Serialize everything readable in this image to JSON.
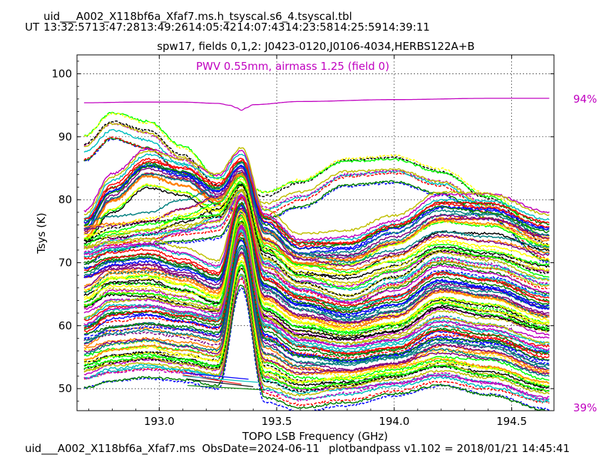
{
  "header": {
    "filename": "uid___A002_X118bf6a_Xfaf7.ms.h_tsyscal.s6_4.tsyscal.tbl",
    "ut_label": "UT",
    "ut_times": [
      "13:32:57",
      "13:47:28",
      "13:49:26",
      "14:05:42",
      "14:07:43",
      "14:23:58",
      "14:25:59",
      "14:39:11"
    ]
  },
  "footer": {
    "left": "uid___A002_X118bf6a_Xfaf7.ms  ObsDate=2024-06-11",
    "right": "plotbandpass v1.102 = 2018/01/21 14:45:41"
  },
  "colors": {
    "pwv": "#c000c0",
    "palette": [
      "#0000ff",
      "#008000",
      "#ff0000",
      "#00bfbf",
      "#bf00bf",
      "#bfbf00",
      "#000000",
      "#00ff00",
      "#ffff00",
      "#ff7f00",
      "#7f007f",
      "#007f7f"
    ]
  },
  "chart_data": {
    "type": "line",
    "title": "spw17,  fields 0,1,2: J0423-0120,J0106-4034,HERBS122A+B",
    "annotation": "PWV 0.55mm, airmass 1.25 (field 0)",
    "xlabel": "TOPO LSB Frequency (GHz)",
    "ylabel": "Tsys (K)",
    "xlim": [
      192.65,
      194.68
    ],
    "ylim": [
      46.5,
      103
    ],
    "xticks": [
      "193.0",
      "193.5",
      "194.0",
      "194.5"
    ],
    "yticks": [
      "50",
      "60",
      "70",
      "80",
      "90",
      "100"
    ],
    "grid": true,
    "right_axis": {
      "top_label": "94%",
      "bottom_label": "39%"
    },
    "atm_transmission": {
      "x": [
        192.68,
        192.9,
        193.1,
        193.25,
        193.3,
        193.33,
        193.35,
        193.37,
        193.4,
        193.6,
        194.0,
        194.4,
        194.66
      ],
      "tsys_units": [
        95.4,
        95.5,
        95.5,
        95.3,
        95.0,
        94.6,
        94.2,
        94.6,
        95.1,
        95.6,
        95.9,
        96.1,
        96.1
      ]
    },
    "series_profiles": [
      {
        "name": "",
        "style": "dashed",
        "x": [
          192.68,
          192.8,
          192.95,
          193.1,
          193.25,
          193.35,
          193.45,
          193.6,
          193.8,
          194.0,
          194.2,
          194.4,
          194.66
        ],
        "y": [
          88,
          91.5,
          90,
          86,
          81,
          80,
          79,
          81,
          84.5,
          85,
          83,
          79,
          72
        ]
      },
      {
        "name": "",
        "style": "solid",
        "x": [
          192.68,
          192.8,
          192.95,
          193.1,
          193.25,
          193.35,
          193.45,
          193.6,
          193.8,
          194.0,
          194.2,
          194.4,
          194.66
        ],
        "y": [
          76,
          82,
          86,
          84.5,
          82,
          86,
          76,
          72,
          72.5,
          75,
          79,
          79,
          76
        ]
      },
      {
        "name": "",
        "style": "solid",
        "x": [
          192.68,
          192.8,
          192.95,
          193.1,
          193.25,
          193.35,
          193.45,
          193.6,
          193.8,
          194.0,
          194.2,
          194.4,
          194.66
        ],
        "y": [
          75,
          80,
          84,
          83,
          80,
          84,
          75,
          71,
          71,
          74,
          77.5,
          77,
          74
        ]
      },
      {
        "name": "",
        "style": "solid",
        "x": [
          192.68,
          192.8,
          192.95,
          193.1,
          193.25,
          193.35,
          193.45,
          193.6,
          193.8,
          194.0,
          194.2,
          194.4,
          194.66
        ],
        "y": [
          74,
          74.5,
          75,
          77,
          79,
          83,
          72,
          69,
          68,
          70,
          73,
          72,
          70
        ]
      },
      {
        "name": "",
        "style": "dashed",
        "x": [
          192.68,
          192.8,
          192.95,
          193.1,
          193.25,
          193.35,
          193.45,
          193.6,
          193.8,
          194.0,
          194.2,
          194.4,
          194.66
        ],
        "y": [
          72,
          74,
          75,
          75.5,
          76,
          81,
          70,
          66,
          64,
          67,
          71,
          70,
          67
        ]
      },
      {
        "name": "",
        "style": "solid",
        "x": [
          192.68,
          192.8,
          192.95,
          193.1,
          193.25,
          193.35,
          193.45,
          193.6,
          193.8,
          194.0,
          194.2,
          194.4,
          194.66
        ],
        "y": [
          70,
          71,
          71.5,
          70,
          68,
          79,
          67,
          64,
          62,
          64,
          68,
          67,
          64
        ]
      },
      {
        "name": "",
        "style": "solid",
        "x": [
          192.68,
          192.8,
          192.95,
          193.1,
          193.25,
          193.35,
          193.45,
          193.6,
          193.8,
          194.0,
          194.2,
          194.4,
          194.66
        ],
        "y": [
          67,
          69,
          69.5,
          68,
          66,
          78,
          65,
          62,
          60.5,
          62,
          66,
          65,
          62
        ]
      },
      {
        "name": "",
        "style": "dashed",
        "x": [
          192.68,
          192.8,
          192.95,
          193.1,
          193.25,
          193.35,
          193.45,
          193.6,
          193.8,
          194.0,
          194.2,
          194.4,
          194.66
        ],
        "y": [
          64,
          67,
          67,
          66,
          64,
          77,
          63,
          60,
          59,
          60,
          64,
          63,
          60
        ]
      },
      {
        "name": "",
        "style": "solid",
        "x": [
          192.68,
          192.8,
          192.95,
          193.1,
          193.25,
          193.35,
          193.45,
          193.6,
          193.8,
          194.0,
          194.2,
          194.4,
          194.66
        ],
        "y": [
          62,
          64,
          64,
          63,
          62,
          76,
          61,
          58,
          57,
          58,
          61.5,
          60,
          58
        ]
      },
      {
        "name": "",
        "style": "solid",
        "x": [
          192.68,
          192.8,
          192.95,
          193.1,
          193.25,
          193.35,
          193.45,
          193.6,
          193.8,
          194.0,
          194.2,
          194.4,
          194.66
        ],
        "y": [
          59,
          61.5,
          62,
          61,
          60,
          74,
          59,
          56,
          55,
          56,
          59,
          58,
          55
        ]
      },
      {
        "name": "",
        "style": "dashed",
        "x": [
          192.68,
          192.8,
          192.95,
          193.1,
          193.25,
          193.35,
          193.45,
          193.6,
          193.8,
          194.0,
          194.2,
          194.4,
          194.66
        ],
        "y": [
          57,
          58,
          58.5,
          58,
          57,
          72,
          56,
          53.5,
          53,
          54,
          56.5,
          56,
          53
        ]
      },
      {
        "name": "",
        "style": "solid",
        "x": [
          192.68,
          192.8,
          192.95,
          193.1,
          193.25,
          193.35,
          193.45,
          193.6,
          193.8,
          194.0,
          194.2,
          194.4,
          194.66
        ],
        "y": [
          54,
          55.5,
          56,
          55,
          54,
          70,
          53,
          51,
          51.5,
          52.5,
          54,
          53,
          50.5
        ]
      },
      {
        "name": "",
        "style": "dashed",
        "x": [
          192.68,
          192.8,
          192.95,
          193.1,
          193.25,
          193.35,
          193.45,
          193.6,
          193.8,
          194.0,
          194.2,
          194.4,
          194.66
        ],
        "y": [
          52,
          53,
          53.5,
          53,
          52,
          68,
          50,
          48.5,
          49.5,
          51,
          52.5,
          51,
          48.5
        ]
      }
    ],
    "n_curves_per_profile": 9
  }
}
